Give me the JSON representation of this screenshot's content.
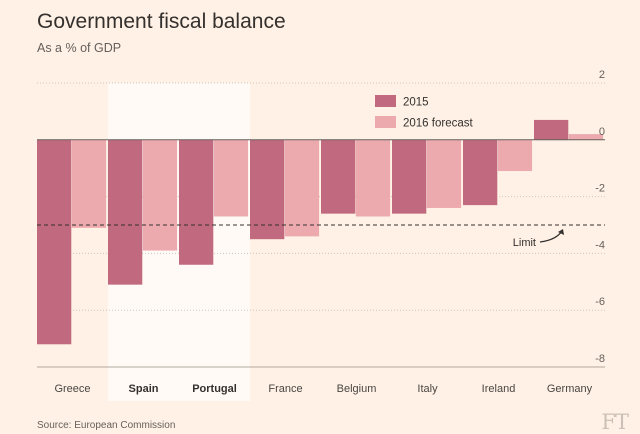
{
  "title": "Government fiscal balance",
  "subtitle": "As a % of GDP",
  "source": "Source: European Commission",
  "brand": "FT",
  "chart_data": {
    "type": "bar",
    "title": "Government fiscal balance",
    "subtitle": "As a % of GDP",
    "categories": [
      "Greece",
      "Spain",
      "Portugal",
      "France",
      "Belgium",
      "Italy",
      "Ireland",
      "Germany"
    ],
    "highlighted_categories": [
      "Spain",
      "Portugal"
    ],
    "series": [
      {
        "name": "2015",
        "color": "#c0697f",
        "values": [
          -7.2,
          -5.1,
          -4.4,
          -3.5,
          -2.6,
          -2.6,
          -2.3,
          0.7
        ]
      },
      {
        "name": "2016 forecast",
        "color": "#edaaae",
        "values": [
          -3.1,
          -3.9,
          -2.7,
          -3.4,
          -2.7,
          -2.4,
          -1.1,
          0.2
        ]
      }
    ],
    "ylim": [
      -8,
      2
    ],
    "yticks": [
      2,
      0,
      -2,
      -4,
      -6,
      -8
    ],
    "reference_line": {
      "value": -3,
      "label": "Limit",
      "style": "dashed"
    },
    "legend_position": "top-right",
    "grid": true
  }
}
